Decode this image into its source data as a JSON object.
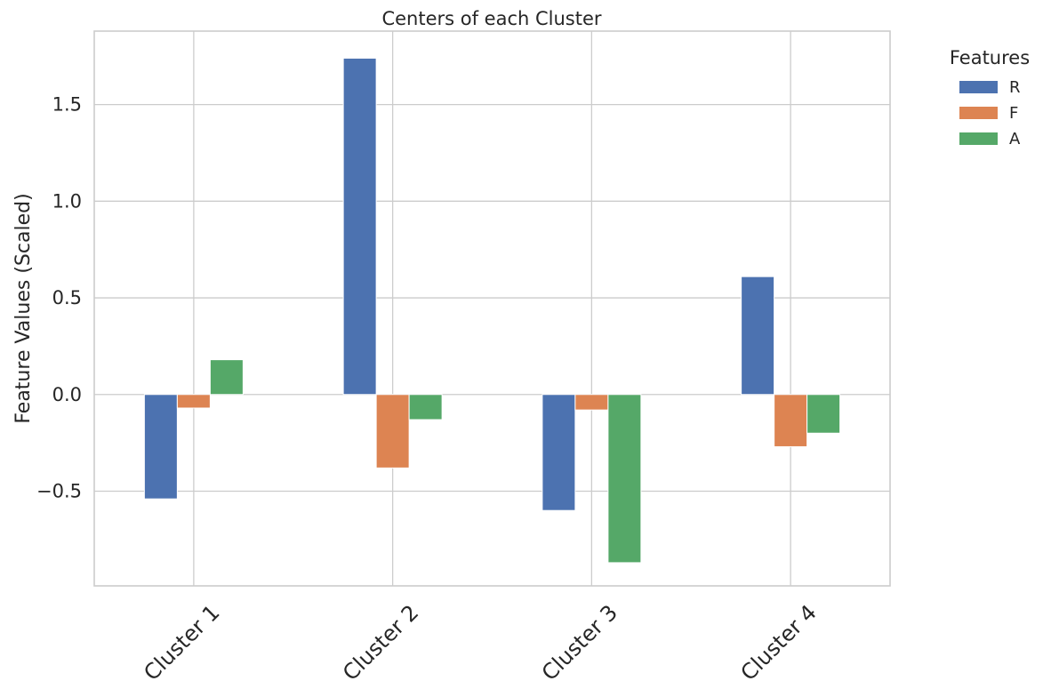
{
  "chart_data": {
    "type": "bar",
    "title": "Centers of each Cluster",
    "xlabel": "",
    "ylabel": "Feature Values (Scaled)",
    "categories": [
      "Cluster 1",
      "Cluster 2",
      "Cluster 3",
      "Cluster 4"
    ],
    "series": [
      {
        "name": "R",
        "color": "#4c72b0",
        "values": [
          -0.54,
          1.74,
          -0.6,
          0.61
        ]
      },
      {
        "name": "F",
        "color": "#dd8452",
        "values": [
          -0.07,
          -0.38,
          -0.08,
          -0.27
        ]
      },
      {
        "name": "A",
        "color": "#55a868",
        "values": [
          0.18,
          -0.13,
          -0.87,
          -0.2
        ]
      }
    ],
    "ylim": [
      -0.99,
      1.88
    ],
    "yticks": [
      -0.5,
      0.0,
      0.5,
      1.0,
      1.5
    ],
    "ytick_labels": [
      "−0.5",
      "0.0",
      "0.5",
      "1.0",
      "1.5"
    ],
    "grid": true,
    "legend": {
      "title": "Features",
      "placement": "outside-top-right"
    }
  }
}
